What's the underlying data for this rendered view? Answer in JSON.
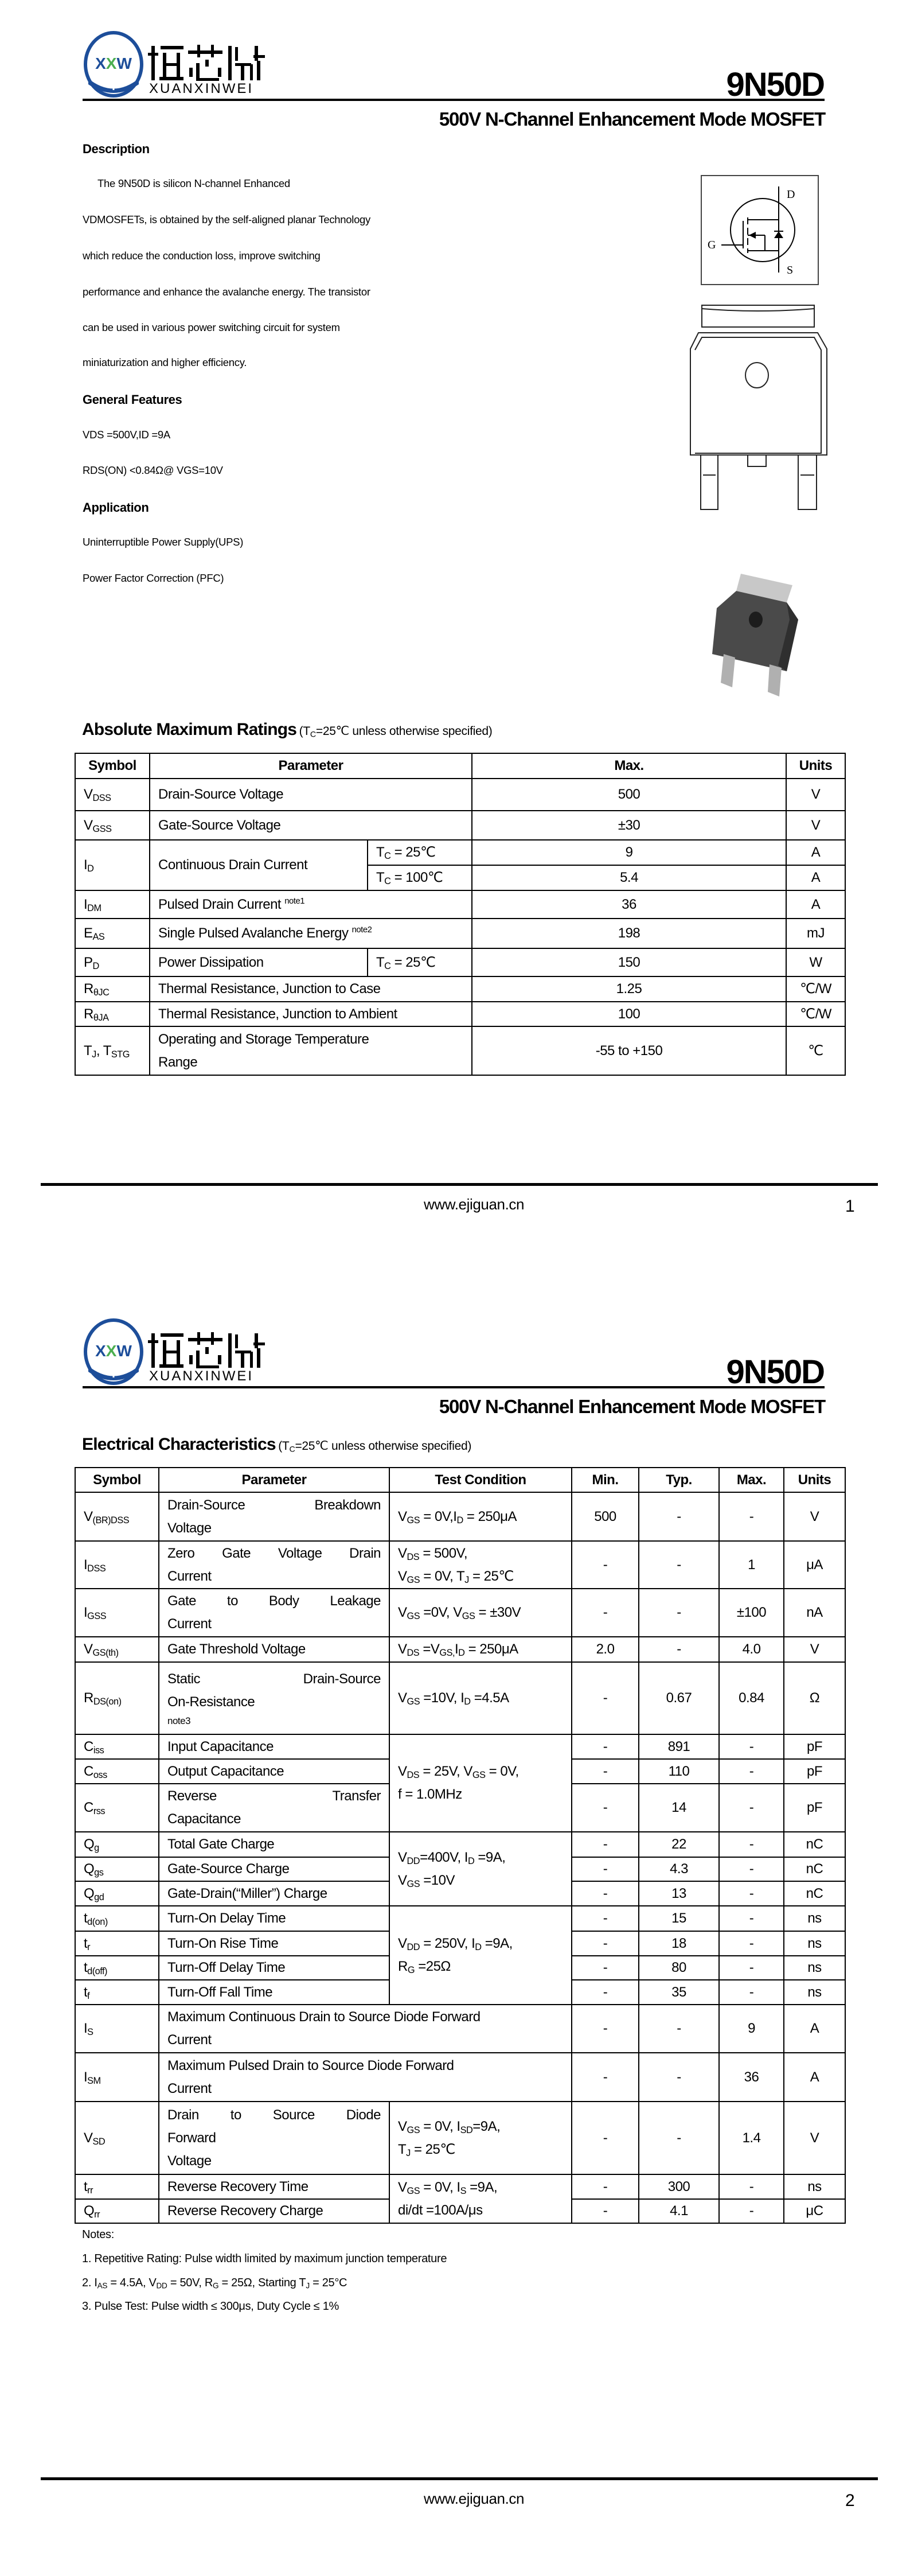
{
  "header": {
    "brand_cn": "恒芯微",
    "brand_en": "XUANXINWEI",
    "logo_mark": "XXW",
    "part_number": "9N50D",
    "subtitle": "500V N-Channel Enhancement Mode MOSFET",
    "brand_blue": "#1d4e9a",
    "brand_green": "#4caf50"
  },
  "description": {
    "heading": "Description",
    "lines": [
      "The 9N50D is silicon N-channel Enhanced",
      "VDMOSFETs, is obtained by the self-aligned planar Technology",
      "which reduce the conduction loss, improve switching",
      "performance and enhance the avalanche energy. The transistor",
      "can be used in various power switching circuit for system",
      "miniaturization and higher efficiency."
    ]
  },
  "features": {
    "heading": "General Features",
    "items": [
      "VDS =500V,ID =9A",
      "RDS(ON) <0.84Ω@ VGS=10V"
    ]
  },
  "application": {
    "heading": "Application",
    "items": [
      "Uninterruptible Power Supply(UPS)",
      "Power Factor Correction (PFC)"
    ]
  },
  "schematic": {
    "drain": "D",
    "gate": "G",
    "source": "S"
  },
  "abs_max": {
    "title": "Absolute Maximum Ratings",
    "condition": "(T_{C}=25℃ unless otherwise specified)",
    "headers": [
      "Symbol",
      "Parameter",
      "Max.",
      "Units"
    ],
    "rows": [
      {
        "sym": "V_{DSS}",
        "param": "Drain-Source Voltage",
        "max": "500",
        "unit": "V"
      },
      {
        "sym": "V_{GSS}",
        "param": "Gate-Source Voltage",
        "max": "±30",
        "unit": "V"
      },
      {
        "sym": "I_{D}",
        "param": "Continuous Drain Current",
        "cond": "T_{C} = 25℃",
        "max": "9",
        "unit": "A",
        "rowspan": 2
      },
      {
        "cond": "T_{C} = 100℃",
        "max": "5.4",
        "unit": "A"
      },
      {
        "sym": "I_{DM}",
        "param": "Pulsed Drain Current ^{note1}",
        "max": "36",
        "unit": "A"
      },
      {
        "sym": "E_{AS}",
        "param": "Single Pulsed Avalanche Energy ^{note2}",
        "max": "198",
        "unit": "mJ"
      },
      {
        "sym": "P_{D}",
        "param": "Power Dissipation",
        "cond": "T_{C} = 25℃",
        "max": "150",
        "unit": "W"
      },
      {
        "sym": "R_{θJC}",
        "param": "Thermal Resistance, Junction to Case",
        "max": "1.25",
        "unit": "℃/W"
      },
      {
        "sym": "R_{θJA}",
        "param": "Thermal Resistance, Junction to Ambient",
        "max": "100",
        "unit": "℃/W"
      },
      {
        "sym": "T_{J}, T_{STG}",
        "param": "Operating and Storage Temperature\nRange",
        "max": "-55 to +150",
        "unit": "℃"
      }
    ]
  },
  "elec": {
    "title": "Electrical Characteristics",
    "condition": "(T_{C}=25℃ unless otherwise specified)",
    "headers": [
      "Symbol",
      "Parameter",
      "Test Condition",
      "Min.",
      "Typ.",
      "Max.",
      "Units"
    ],
    "rows": [
      {
        "sym": "V_{(BR)DSS}",
        "param": "Drain-Source Breakdown\nVoltage",
        "cond": "V_{GS} = 0V,I_{D} = 250μA",
        "min": "500",
        "typ": "-",
        "max": "-",
        "unit": "V"
      },
      {
        "sym": "I_{DSS}",
        "param": "Zero Gate Voltage Drain\nCurrent",
        "cond": "V_{DS} = 500V,\nV_{GS} = 0V, T_{J} = 25℃",
        "min": "-",
        "typ": "-",
        "max": "1",
        "unit": "μA"
      },
      {
        "sym": "I_{GSS}",
        "param": "Gate to Body Leakage\nCurrent",
        "cond": "V_{GS} =0V, V_{GS} = ±30V",
        "min": "-",
        "typ": "-",
        "max": "±100",
        "unit": "nA"
      },
      {
        "sym": "V_{GS(th)}",
        "param": "Gate Threshold Voltage",
        "cond": "V_{DS} =V_{GS,}I_{D} = 250μA",
        "min": "2.0",
        "typ": "-",
        "max": "4.0",
        "unit": "V"
      },
      {
        "sym": "R_{DS(on)}",
        "param": "Static Drain-Source\nOn-Resistance",
        "param_note": "note3",
        "cond": "V_{GS} =10V, I_{D} =4.5A",
        "min": "-",
        "typ": "0.67",
        "max": "0.84",
        "unit": "Ω"
      },
      {
        "sym": "C_{iss}",
        "param": "Input Capacitance",
        "cond": "V_{DS} = 25V, V_{GS} = 0V,\nf = 1.0MHz",
        "cond_rowspan": 3,
        "min": "-",
        "typ": "891",
        "max": "-",
        "unit": "pF"
      },
      {
        "sym": "C_{oss}",
        "param": "Output Capacitance",
        "min": "-",
        "typ": "110",
        "max": "-",
        "unit": "pF"
      },
      {
        "sym": "C_{rss}",
        "param": "Reverse Transfer\nCapacitance",
        "min": "-",
        "typ": "14",
        "max": "-",
        "unit": "pF"
      },
      {
        "sym": "Q_{g}",
        "param": "Total Gate Charge",
        "cond": "V_{DD}=400V, I_{D} =9A,\nV_{GS} =10V",
        "cond_rowspan": 3,
        "min": "-",
        "typ": "22",
        "max": "-",
        "unit": "nC"
      },
      {
        "sym": "Q_{gs}",
        "param": "Gate-Source Charge",
        "min": "-",
        "typ": "4.3",
        "max": "-",
        "unit": "nC"
      },
      {
        "sym": "Q_{gd}",
        "param": "Gate-Drain(“Miller”) Charge",
        "min": "-",
        "typ": "13",
        "max": "-",
        "unit": "nC"
      },
      {
        "sym": "t_{d(on)}",
        "param": "Turn-On Delay Time",
        "cond": "V_{DD} = 250V, I_{D} =9A,\nR_{G} =25Ω",
        "cond_rowspan": 4,
        "min": "-",
        "typ": "15",
        "max": "-",
        "unit": "ns"
      },
      {
        "sym": "t_{r}",
        "param": "Turn-On Rise Time",
        "min": "-",
        "typ": "18",
        "max": "-",
        "unit": "ns"
      },
      {
        "sym": "t_{d(off)}",
        "param": "Turn-Off Delay Time",
        "min": "-",
        "typ": "80",
        "max": "-",
        "unit": "ns"
      },
      {
        "sym": "t_{f}",
        "param": "Turn-Off Fall Time",
        "min": "-",
        "typ": "35",
        "max": "-",
        "unit": "ns"
      },
      {
        "sym": "I_{S}",
        "param": "Maximum Continuous Drain to Source Diode Forward\nCurrent",
        "param_colspan": 2,
        "min": "-",
        "typ": "-",
        "max": "9",
        "unit": "A"
      },
      {
        "sym": "I_{SM}",
        "param": "Maximum Pulsed Drain to Source Diode Forward\nCurrent",
        "param_colspan": 2,
        "min": "-",
        "typ": "-",
        "max": "36",
        "unit": "A"
      },
      {
        "sym": "V_{SD}",
        "param": "Drain to Source Diode\nForward\nVoltage",
        "cond": "V_{GS} = 0V, I_{SD}=9A,\nT_{J} = 25℃",
        "min": "-",
        "typ": "-",
        "max": "1.4",
        "unit": "V"
      },
      {
        "sym": "t_{rr}",
        "param": "Reverse Recovery Time",
        "cond": "V_{GS} = 0V, I_{S} =9A,\ndi/dt =100A/μs",
        "cond_rowspan": 2,
        "min": "-",
        "typ": "300",
        "max": "-",
        "unit": "ns"
      },
      {
        "sym": "Q_{rr}",
        "param": "Reverse Recovery Charge",
        "min": "-",
        "typ": "4.1",
        "max": "-",
        "unit": "μC"
      }
    ]
  },
  "notes": {
    "heading": "Notes:",
    "items": [
      "1. Repetitive Rating: Pulse width limited by maximum junction temperature",
      "2. I_{AS} = 4.5A, V_{DD} = 50V, R_{G} = 25Ω, Starting T_{J} = 25°C",
      "3. Pulse Test: Pulse width ≤ 300μs, Duty Cycle ≤ 1%"
    ]
  },
  "footer": {
    "url": "www.ejiguan.cn",
    "pages": [
      "1",
      "2"
    ]
  }
}
